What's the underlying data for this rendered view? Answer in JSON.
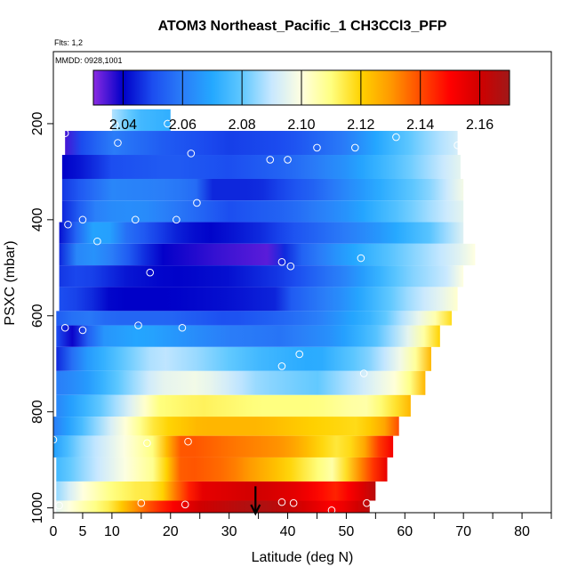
{
  "chart_data": {
    "type": "heatmap",
    "title": "ATOM3 Northeast_Pacific_1 CH3CCl3_PFP",
    "flights_label": "Flts: 1,2",
    "date_label": "MMDD: 0928,1001",
    "xlabel": "Latitude (deg N)",
    "ylabel": "PSXC (mbar)",
    "xlim": [
      0,
      85
    ],
    "ylim": [
      1010,
      50
    ],
    "y_reversed": true,
    "grid": false,
    "x_ticks": [
      0,
      5,
      10,
      20,
      30,
      40,
      50,
      60,
      70,
      80
    ],
    "x_minor_ticks": [
      15,
      25,
      35,
      45,
      55,
      65,
      75,
      85
    ],
    "y_ticks": [
      200,
      400,
      600,
      800,
      1000
    ],
    "colorbar": {
      "placement": "top-inside",
      "range": [
        2.03,
        2.17
      ],
      "tick_values": [
        2.04,
        2.06,
        2.08,
        2.1,
        2.12,
        2.14,
        2.16
      ],
      "tick_labels": [
        "2.04",
        "2.06",
        "2.08",
        "2.10",
        "2.12",
        "2.14",
        "2.16"
      ],
      "boundaries": [
        2.04,
        2.06,
        2.08,
        2.1,
        2.12,
        2.14,
        2.16
      ],
      "stops": [
        {
          "v": 2.03,
          "c": "#8a2be2"
        },
        {
          "v": 2.04,
          "c": "#0000c8"
        },
        {
          "v": 2.05,
          "c": "#1c4ef0"
        },
        {
          "v": 2.06,
          "c": "#2a7df8"
        },
        {
          "v": 2.07,
          "c": "#24a8ff"
        },
        {
          "v": 2.08,
          "c": "#60c8ff"
        },
        {
          "v": 2.09,
          "c": "#c8e8ff"
        },
        {
          "v": 2.1,
          "c": "#ffffe0"
        },
        {
          "v": 2.11,
          "c": "#ffff80"
        },
        {
          "v": 2.12,
          "c": "#ffd200"
        },
        {
          "v": 2.13,
          "c": "#ff9900"
        },
        {
          "v": 2.14,
          "c": "#ff4b00"
        },
        {
          "v": 2.15,
          "c": "#ff0000"
        },
        {
          "v": 2.16,
          "c": "#d00000"
        },
        {
          "v": 2.17,
          "c": "#a01818"
        }
      ]
    },
    "bands": [
      {
        "p0": 170,
        "p1": 215,
        "lat0": 10,
        "lat1": 20,
        "nodes": [
          [
            10,
            2.088
          ],
          [
            15,
            2.075
          ],
          [
            20,
            2.072
          ]
        ]
      },
      {
        "p0": 215,
        "p1": 265,
        "lat0": 2,
        "lat1": 69,
        "nodes": [
          [
            2,
            2.035
          ],
          [
            4,
            2.048
          ],
          [
            10,
            2.06
          ],
          [
            20,
            2.052
          ],
          [
            30,
            2.048
          ],
          [
            40,
            2.05
          ],
          [
            50,
            2.06
          ],
          [
            58,
            2.075
          ],
          [
            64,
            2.085
          ],
          [
            69,
            2.092
          ]
        ]
      },
      {
        "p0": 265,
        "p1": 315,
        "lat0": 1.5,
        "lat1": 69.5,
        "nodes": [
          [
            1.5,
            2.04
          ],
          [
            5,
            2.043
          ],
          [
            10,
            2.05
          ],
          [
            20,
            2.053
          ],
          [
            30,
            2.05
          ],
          [
            40,
            2.055
          ],
          [
            50,
            2.065
          ],
          [
            60,
            2.08
          ],
          [
            69.5,
            2.095
          ]
        ]
      },
      {
        "p0": 315,
        "p1": 360,
        "lat0": 1.5,
        "lat1": 70,
        "nodes": [
          [
            1.5,
            2.047
          ],
          [
            10,
            2.062
          ],
          [
            20,
            2.06
          ],
          [
            26,
            2.055
          ],
          [
            27,
            2.045
          ],
          [
            35,
            2.045
          ],
          [
            45,
            2.055
          ],
          [
            55,
            2.07
          ],
          [
            65,
            2.085
          ],
          [
            70,
            2.098
          ]
        ]
      },
      {
        "p0": 360,
        "p1": 405,
        "lat0": 1.5,
        "lat1": 70,
        "nodes": [
          [
            1.5,
            2.045
          ],
          [
            8,
            2.063
          ],
          [
            15,
            2.064
          ],
          [
            22,
            2.058
          ],
          [
            30,
            2.05
          ],
          [
            40,
            2.055
          ],
          [
            50,
            2.065
          ],
          [
            60,
            2.08
          ],
          [
            70,
            2.095
          ]
        ]
      },
      {
        "p0": 405,
        "p1": 450,
        "lat0": 1,
        "lat1": 70,
        "nodes": [
          [
            1,
            2.042
          ],
          [
            5,
            2.06
          ],
          [
            8,
            2.075
          ],
          [
            12,
            2.058
          ],
          [
            20,
            2.045
          ],
          [
            26,
            2.04
          ],
          [
            35,
            2.045
          ],
          [
            45,
            2.055
          ],
          [
            55,
            2.065
          ],
          [
            65,
            2.08
          ],
          [
            70,
            2.094
          ]
        ]
      },
      {
        "p0": 450,
        "p1": 495,
        "lat0": 1,
        "lat1": 72,
        "nodes": [
          [
            1,
            2.045
          ],
          [
            5,
            2.068
          ],
          [
            10,
            2.06
          ],
          [
            18,
            2.04
          ],
          [
            28,
            2.036
          ],
          [
            38,
            2.033
          ],
          [
            40,
            2.05
          ],
          [
            50,
            2.068
          ],
          [
            60,
            2.082
          ],
          [
            68,
            2.092
          ],
          [
            72,
            2.1
          ]
        ]
      },
      {
        "p0": 495,
        "p1": 540,
        "lat0": 1,
        "lat1": 70,
        "nodes": [
          [
            1,
            2.047
          ],
          [
            5,
            2.05
          ],
          [
            12,
            2.043
          ],
          [
            20,
            2.04
          ],
          [
            30,
            2.042
          ],
          [
            40,
            2.048
          ],
          [
            50,
            2.062
          ],
          [
            60,
            2.082
          ],
          [
            67,
            2.09
          ],
          [
            70,
            2.1
          ]
        ]
      },
      {
        "p0": 540,
        "p1": 590,
        "lat0": 1,
        "lat1": 69,
        "nodes": [
          [
            1,
            2.05
          ],
          [
            5,
            2.048
          ],
          [
            10,
            2.04
          ],
          [
            20,
            2.04
          ],
          [
            30,
            2.042
          ],
          [
            39,
            2.045
          ],
          [
            40,
            2.052
          ],
          [
            50,
            2.065
          ],
          [
            60,
            2.085
          ],
          [
            66,
            2.095
          ],
          [
            69,
            2.102
          ]
        ]
      },
      {
        "p0": 590,
        "p1": 620,
        "lat0": 0.5,
        "lat1": 68,
        "nodes": [
          [
            0.5,
            2.053
          ],
          [
            5,
            2.06
          ],
          [
            10,
            2.055
          ],
          [
            20,
            2.055
          ],
          [
            30,
            2.05
          ],
          [
            39,
            2.055
          ],
          [
            45,
            2.06
          ],
          [
            55,
            2.075
          ],
          [
            62,
            2.095
          ],
          [
            66,
            2.108
          ],
          [
            68,
            2.118
          ]
        ]
      },
      {
        "p0": 620,
        "p1": 665,
        "lat0": 0.5,
        "lat1": 66,
        "nodes": [
          [
            0.5,
            2.05
          ],
          [
            3,
            2.038
          ],
          [
            8,
            2.065
          ],
          [
            15,
            2.07
          ],
          [
            22,
            2.065
          ],
          [
            30,
            2.06
          ],
          [
            39,
            2.058
          ],
          [
            48,
            2.065
          ],
          [
            56,
            2.08
          ],
          [
            62,
            2.1
          ],
          [
            66,
            2.12
          ]
        ]
      },
      {
        "p0": 665,
        "p1": 715,
        "lat0": 0.5,
        "lat1": 64.5,
        "nodes": [
          [
            0.5,
            2.045
          ],
          [
            5,
            2.065
          ],
          [
            12,
            2.08
          ],
          [
            18,
            2.09
          ],
          [
            25,
            2.085
          ],
          [
            35,
            2.075
          ],
          [
            45,
            2.07
          ],
          [
            55,
            2.085
          ],
          [
            60,
            2.1
          ],
          [
            63,
            2.112
          ],
          [
            64.5,
            2.125
          ]
        ]
      },
      {
        "p0": 715,
        "p1": 765,
        "lat0": 0.5,
        "lat1": 63.5,
        "nodes": [
          [
            0.5,
            2.06
          ],
          [
            5,
            2.065
          ],
          [
            12,
            2.082
          ],
          [
            18,
            2.095
          ],
          [
            25,
            2.098
          ],
          [
            35,
            2.085
          ],
          [
            45,
            2.08
          ],
          [
            52,
            2.09
          ],
          [
            58,
            2.1
          ],
          [
            62,
            2.113
          ],
          [
            63.5,
            2.125
          ]
        ]
      },
      {
        "p0": 765,
        "p1": 810,
        "lat0": 0.5,
        "lat1": 61,
        "nodes": [
          [
            0.5,
            2.062
          ],
          [
            6,
            2.075
          ],
          [
            12,
            2.09
          ],
          [
            18,
            2.11
          ],
          [
            25,
            2.113
          ],
          [
            35,
            2.11
          ],
          [
            45,
            2.11
          ],
          [
            53,
            2.105
          ],
          [
            58,
            2.115
          ],
          [
            61,
            2.125
          ]
        ]
      },
      {
        "p0": 810,
        "p1": 850,
        "lat0": 0,
        "lat1": 59,
        "nodes": [
          [
            0,
            2.06
          ],
          [
            6,
            2.08
          ],
          [
            12,
            2.1
          ],
          [
            18,
            2.118
          ],
          [
            25,
            2.125
          ],
          [
            35,
            2.125
          ],
          [
            45,
            2.12
          ],
          [
            52,
            2.118
          ],
          [
            56,
            2.125
          ],
          [
            59,
            2.14
          ]
        ]
      },
      {
        "p0": 850,
        "p1": 895,
        "lat0": 0,
        "lat1": 58,
        "nodes": [
          [
            0,
            2.068
          ],
          [
            5,
            2.085
          ],
          [
            10,
            2.095
          ],
          [
            17,
            2.11
          ],
          [
            22,
            2.14
          ],
          [
            30,
            2.135
          ],
          [
            40,
            2.13
          ],
          [
            48,
            2.115
          ],
          [
            52,
            2.12
          ],
          [
            55,
            2.14
          ],
          [
            58,
            2.152
          ]
        ]
      },
      {
        "p0": 895,
        "p1": 945,
        "lat0": 0.5,
        "lat1": 57,
        "nodes": [
          [
            0.5,
            2.075
          ],
          [
            5,
            2.085
          ],
          [
            10,
            2.095
          ],
          [
            15,
            2.105
          ],
          [
            18,
            2.11
          ],
          [
            22,
            2.14
          ],
          [
            30,
            2.135
          ],
          [
            40,
            2.12
          ],
          [
            48,
            2.105
          ],
          [
            52,
            2.13
          ],
          [
            57,
            2.155
          ]
        ]
      },
      {
        "p0": 945,
        "p1": 985,
        "lat0": 0.5,
        "lat1": 55,
        "nodes": [
          [
            0.5,
            2.085
          ],
          [
            5,
            2.1
          ],
          [
            10,
            2.11
          ],
          [
            15,
            2.115
          ],
          [
            18,
            2.115
          ],
          [
            20,
            2.13
          ],
          [
            25,
            2.155
          ],
          [
            35,
            2.16
          ],
          [
            42,
            2.155
          ],
          [
            48,
            2.145
          ],
          [
            52,
            2.155
          ],
          [
            55,
            2.165
          ]
        ]
      },
      {
        "p0": 985,
        "p1": 1010,
        "lat0": 0.5,
        "lat1": 54,
        "nodes": [
          [
            0.5,
            2.095
          ],
          [
            5,
            2.105
          ],
          [
            10,
            2.115
          ],
          [
            15,
            2.135
          ],
          [
            20,
            2.15
          ],
          [
            25,
            2.16
          ],
          [
            35,
            2.168
          ],
          [
            42,
            2.16
          ],
          [
            48,
            2.15
          ],
          [
            52,
            2.16
          ],
          [
            54,
            2.165
          ]
        ]
      }
    ],
    "sample_points": [
      {
        "lat": 2,
        "p": 220
      },
      {
        "lat": 10.5,
        "p": 203
      },
      {
        "lat": 19.5,
        "p": 200
      },
      {
        "lat": 11,
        "p": 240
      },
      {
        "lat": 23.5,
        "p": 262
      },
      {
        "lat": 37,
        "p": 275
      },
      {
        "lat": 40,
        "p": 275
      },
      {
        "lat": 45,
        "p": 250
      },
      {
        "lat": 51.5,
        "p": 250
      },
      {
        "lat": 58.5,
        "p": 228
      },
      {
        "lat": 69,
        "p": 245
      },
      {
        "lat": 24.5,
        "p": 365
      },
      {
        "lat": 2.5,
        "p": 410
      },
      {
        "lat": 5,
        "p": 400
      },
      {
        "lat": 14,
        "p": 400
      },
      {
        "lat": 21,
        "p": 400
      },
      {
        "lat": 7.5,
        "p": 445
      },
      {
        "lat": 39,
        "p": 488
      },
      {
        "lat": 40.5,
        "p": 497
      },
      {
        "lat": 52.5,
        "p": 480
      },
      {
        "lat": 16.5,
        "p": 510
      },
      {
        "lat": 2,
        "p": 625
      },
      {
        "lat": 5,
        "p": 630
      },
      {
        "lat": 14.5,
        "p": 620
      },
      {
        "lat": 22,
        "p": 625
      },
      {
        "lat": 42,
        "p": 680
      },
      {
        "lat": 39,
        "p": 705
      },
      {
        "lat": 53,
        "p": 720
      },
      {
        "lat": 0,
        "p": 858
      },
      {
        "lat": 16,
        "p": 865
      },
      {
        "lat": 23,
        "p": 862
      },
      {
        "lat": 15,
        "p": 990
      },
      {
        "lat": 22.5,
        "p": 993
      },
      {
        "lat": 39,
        "p": 988
      },
      {
        "lat": 41,
        "p": 990
      },
      {
        "lat": 47.5,
        "p": 1005
      },
      {
        "lat": 53.5,
        "p": 990
      },
      {
        "lat": 1,
        "p": 995
      }
    ],
    "arrow_marker": {
      "lat": 34.5,
      "p_top": 955,
      "p_bottom": 1010,
      "color": "#000000"
    }
  }
}
